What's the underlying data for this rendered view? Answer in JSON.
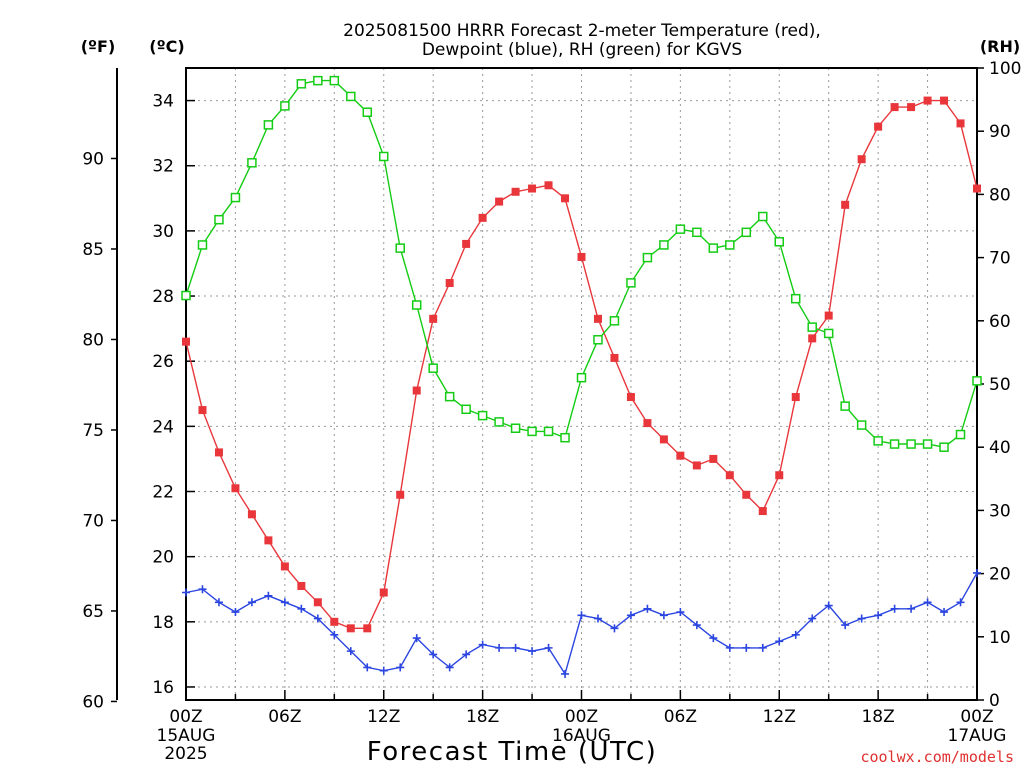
{
  "chart_data": {
    "type": "line",
    "title": "2025081500 HRRR Forecast 2-meter Temperature (red),",
    "subtitle": "Dewpoint (blue), RH (green) for KGVS",
    "xlabel": "Forecast Time (UTC)",
    "watermark": "coolwx.com/models",
    "axis_titles": {
      "fahrenheit": "(ºF)",
      "celsius": "(ºC)",
      "rh": "(RH)"
    },
    "x_ticks": [
      "00Z",
      "06Z",
      "12Z",
      "18Z",
      "00Z",
      "06Z",
      "12Z",
      "18Z",
      "00Z"
    ],
    "x_date_labels": [
      {
        "hour": 0,
        "lines": [
          "15AUG",
          "2025"
        ]
      },
      {
        "hour": 24,
        "lines": [
          "16AUG"
        ]
      },
      {
        "hour": 48,
        "lines": [
          "17AUG"
        ]
      }
    ],
    "xlim": [
      0,
      48
    ],
    "celsius_ticks": [
      16,
      18,
      20,
      22,
      24,
      26,
      28,
      30,
      32,
      34
    ],
    "fahrenheit_ticks": [
      60,
      65,
      70,
      75,
      80,
      85,
      90
    ],
    "rh_ticks": [
      0,
      10,
      20,
      30,
      40,
      50,
      60,
      70,
      80,
      90,
      100
    ],
    "celsius_range": [
      15.6,
      35.0
    ],
    "rh_range": [
      0,
      100
    ],
    "grid": true,
    "series": [
      {
        "key": "temp",
        "name": "Temperature",
        "units": "C",
        "axis": "celsius",
        "color": "#e8363b",
        "marker": "filled-square",
        "values": [
          26.6,
          24.5,
          23.2,
          22.1,
          21.3,
          20.5,
          19.7,
          19.1,
          18.6,
          18.0,
          17.8,
          17.8,
          18.9,
          21.9,
          25.1,
          27.3,
          28.4,
          29.6,
          30.4,
          30.9,
          31.2,
          31.3,
          31.4,
          31.0,
          29.2,
          27.3,
          26.1,
          24.9,
          24.1,
          23.6,
          23.1,
          22.8,
          23.0,
          22.5,
          21.9,
          21.4,
          22.5,
          24.9,
          26.7,
          27.4,
          30.8,
          32.2,
          33.2,
          33.8,
          33.8,
          34.0,
          34.0,
          33.3,
          31.3
        ]
      },
      {
        "key": "dewpoint",
        "name": "Dewpoint",
        "units": "C",
        "axis": "celsius",
        "color": "#2b45e0",
        "marker": "plus",
        "values": [
          18.9,
          19.0,
          18.6,
          18.3,
          18.6,
          18.8,
          18.6,
          18.4,
          18.1,
          17.6,
          17.1,
          16.6,
          16.5,
          16.6,
          17.5,
          17.0,
          16.6,
          17.0,
          17.3,
          17.2,
          17.2,
          17.1,
          17.2,
          16.4,
          18.2,
          18.1,
          17.8,
          18.2,
          18.4,
          18.2,
          18.3,
          17.9,
          17.5,
          17.2,
          17.2,
          17.2,
          17.4,
          17.6,
          18.1,
          18.5,
          17.9,
          18.1,
          18.2,
          18.4,
          18.4,
          18.6,
          18.3,
          18.6,
          19.5
        ]
      },
      {
        "key": "rh",
        "name": "RH",
        "units": "%",
        "axis": "rh",
        "color": "#14cc14",
        "marker": "open-square",
        "values": [
          64,
          72,
          76,
          79.5,
          85,
          91,
          94,
          97.5,
          98,
          98,
          95.5,
          93,
          86,
          71.5,
          62.5,
          52.5,
          48,
          46,
          45,
          44,
          43,
          42.5,
          42.5,
          41.5,
          51,
          57,
          60,
          66,
          70,
          72,
          74.5,
          74,
          71.5,
          72,
          74,
          76.5,
          72.5,
          63.5,
          59,
          58,
          46.5,
          43.5,
          41,
          40.5,
          40.5,
          40.5,
          40,
          42,
          50.5
        ]
      }
    ]
  }
}
